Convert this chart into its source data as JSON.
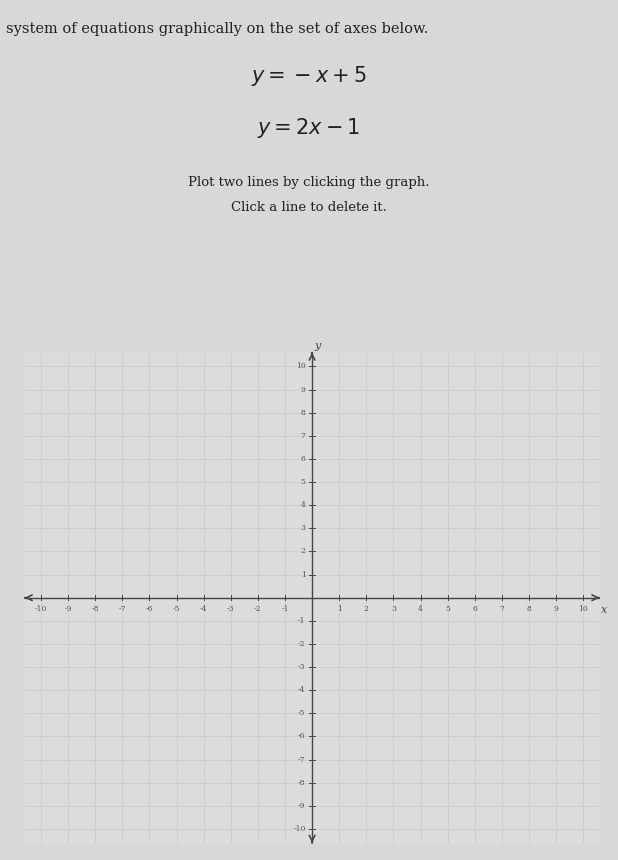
{
  "title_line1": "system of equations graphically on the set of axes below.",
  "eq1_latex": "$y = -x + 5$",
  "eq2_latex": "$y = 2x - 1$",
  "instruction1": "Plot two lines by clicking the graph.",
  "instruction2": "Click a line to delete it.",
  "xmin": -10,
  "xmax": 10,
  "ymin": -10,
  "ymax": 10,
  "background_color": "#dcdcdc",
  "grid_color": "#c8c8c8",
  "axis_color": "#444444",
  "text_color": "#222222",
  "fig_background": "#d8d8d8",
  "tick_label_color": "#555555"
}
